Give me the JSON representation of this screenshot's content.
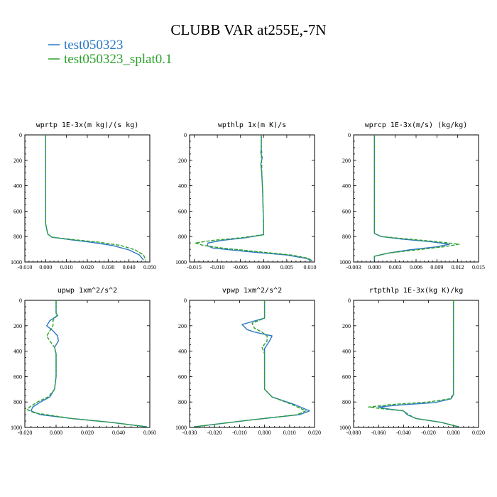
{
  "title": "CLUBB VAR at255E,-7N",
  "legend": [
    {
      "label": "test050323",
      "color": "#2a78c4",
      "dash": "solid"
    },
    {
      "label": "test050323_splat0.1",
      "color": "#2ca02c",
      "dash": "dashed"
    }
  ],
  "chart_data": [
    {
      "type": "line",
      "title": "wprtp  1E-3x(m kg)/(s kg)",
      "xlim": [
        -0.01,
        0.05
      ],
      "xticks": [
        "-0.010",
        "0.000",
        "0.010",
        "0.020",
        "0.030",
        "0.040",
        "0.050"
      ],
      "ylim": [
        1000,
        0
      ],
      "yticks": [
        "0",
        "200",
        "400",
        "600",
        "800",
        "1000"
      ],
      "series": [
        {
          "name": "test050323",
          "points": [
            [
              0.0,
              0
            ],
            [
              0.0,
              100
            ],
            [
              0.0,
              300
            ],
            [
              0.0,
              500
            ],
            [
              0.0,
              700
            ],
            [
              0.001,
              780
            ],
            [
              0.003,
              805
            ],
            [
              0.012,
              825
            ],
            [
              0.022,
              845
            ],
            [
              0.032,
              870
            ],
            [
              0.04,
              905
            ],
            [
              0.045,
              945
            ],
            [
              0.047,
              985
            ]
          ]
        },
        {
          "name": "test050323_splat0.1",
          "points": [
            [
              0.0,
              0
            ],
            [
              0.0,
              100
            ],
            [
              0.0,
              300
            ],
            [
              0.0,
              500
            ],
            [
              0.0,
              700
            ],
            [
              0.001,
              780
            ],
            [
              0.003,
              805
            ],
            [
              0.014,
              825
            ],
            [
              0.026,
              845
            ],
            [
              0.036,
              870
            ],
            [
              0.043,
              905
            ],
            [
              0.047,
              945
            ],
            [
              0.048,
              985
            ]
          ]
        }
      ]
    },
    {
      "type": "line",
      "title": "wpthlp  1x(m K)/s",
      "xlim": [
        -0.016,
        0.011
      ],
      "xticks": [
        "-0.015",
        "-0.010",
        "-0.005",
        "0.000",
        "0.005",
        "0.010"
      ],
      "ylim": [
        1000,
        0
      ],
      "yticks": [
        "0",
        "200",
        "400",
        "600",
        "800",
        "1000"
      ],
      "series": [
        {
          "name": "test050323",
          "points": [
            [
              -0.0005,
              0
            ],
            [
              -0.0005,
              100
            ],
            [
              -0.0006,
              140
            ],
            [
              -0.0003,
              180
            ],
            [
              -0.0006,
              230
            ],
            [
              -0.0004,
              300
            ],
            [
              -0.0002,
              450
            ],
            [
              -0.0001,
              600
            ],
            [
              0.0,
              750
            ],
            [
              0.0,
              785
            ],
            [
              -0.004,
              810
            ],
            [
              -0.009,
              830
            ],
            [
              -0.012,
              850
            ],
            [
              -0.0122,
              870
            ],
            [
              -0.011,
              890
            ],
            [
              -0.003,
              920
            ],
            [
              0.005,
              945
            ],
            [
              0.009,
              970
            ],
            [
              0.0105,
              990
            ]
          ]
        },
        {
          "name": "test050323_splat0.1",
          "points": [
            [
              -0.0005,
              0
            ],
            [
              -0.0005,
              100
            ],
            [
              -0.0004,
              140
            ],
            [
              -0.0005,
              180
            ],
            [
              -0.0004,
              230
            ],
            [
              -0.0004,
              300
            ],
            [
              -0.0002,
              450
            ],
            [
              -0.0001,
              600
            ],
            [
              0.0,
              750
            ],
            [
              0.0,
              785
            ],
            [
              -0.005,
              810
            ],
            [
              -0.011,
              830
            ],
            [
              -0.0148,
              850
            ],
            [
              -0.013,
              870
            ],
            [
              -0.009,
              890
            ],
            [
              -0.001,
              920
            ],
            [
              0.006,
              945
            ],
            [
              0.0095,
              970
            ],
            [
              0.0105,
              990
            ]
          ]
        }
      ]
    },
    {
      "type": "line",
      "title": "wprcp  1E-3x(m/s) (kg/kg)",
      "xlim": [
        -0.003,
        0.015
      ],
      "xticks": [
        "-0.003",
        "0.000",
        "0.003",
        "0.006",
        "0.009",
        "0.012",
        "0.015"
      ],
      "ylim": [
        1000,
        0
      ],
      "yticks": [
        "0",
        "200",
        "400",
        "600",
        "800",
        "1000"
      ],
      "series": [
        {
          "name": "test050323",
          "points": [
            [
              0.0,
              0
            ],
            [
              0.0,
              100
            ],
            [
              0.0,
              300
            ],
            [
              0.0,
              500
            ],
            [
              0.0,
              700
            ],
            [
              0.0,
              775
            ],
            [
              0.001,
              800
            ],
            [
              0.004,
              820
            ],
            [
              0.008,
              840
            ],
            [
              0.0108,
              860
            ],
            [
              0.009,
              880
            ],
            [
              0.005,
              905
            ],
            [
              0.002,
              930
            ],
            [
              0.0,
              955
            ],
            [
              0.0,
              985
            ]
          ]
        },
        {
          "name": "test050323_splat0.1",
          "points": [
            [
              0.0,
              0
            ],
            [
              0.0,
              100
            ],
            [
              0.0,
              300
            ],
            [
              0.0,
              500
            ],
            [
              0.0,
              700
            ],
            [
              0.0,
              775
            ],
            [
              0.001,
              800
            ],
            [
              0.005,
              820
            ],
            [
              0.009,
              840
            ],
            [
              0.0122,
              860
            ],
            [
              0.01,
              880
            ],
            [
              0.006,
              905
            ],
            [
              0.002,
              930
            ],
            [
              0.0,
              955
            ],
            [
              0.0,
              985
            ]
          ]
        }
      ]
    },
    {
      "type": "line",
      "title": "upwp  1xm^2/s^2",
      "xlim": [
        -0.02,
        0.06
      ],
      "xticks": [
        "-0.020",
        "0.000",
        "0.020",
        "0.040",
        "0.060"
      ],
      "ylim": [
        1000,
        0
      ],
      "yticks": [
        "0",
        "200",
        "400",
        "600",
        "800",
        "1000"
      ],
      "series": [
        {
          "name": "test050323",
          "points": [
            [
              0.0,
              0
            ],
            [
              0.0,
              100
            ],
            [
              0.001,
              120
            ],
            [
              -0.004,
              160
            ],
            [
              -0.006,
              200
            ],
            [
              -0.002,
              240
            ],
            [
              0.001,
              280
            ],
            [
              0.0015,
              320
            ],
            [
              -0.001,
              370
            ],
            [
              0.0,
              420
            ],
            [
              0.0,
              500
            ],
            [
              0.0,
              600
            ],
            [
              -0.001,
              700
            ],
            [
              -0.004,
              760
            ],
            [
              -0.01,
              800
            ],
            [
              -0.015,
              840
            ],
            [
              -0.016,
              870
            ],
            [
              -0.01,
              900
            ],
            [
              0.01,
              930
            ],
            [
              0.035,
              960
            ],
            [
              0.058,
              995
            ]
          ]
        },
        {
          "name": "test050323_splat0.1",
          "points": [
            [
              0.0,
              0
            ],
            [
              0.0,
              100
            ],
            [
              0.0005,
              120
            ],
            [
              -0.002,
              160
            ],
            [
              -0.002,
              200
            ],
            [
              -0.004,
              240
            ],
            [
              -0.006,
              280
            ],
            [
              -0.004,
              320
            ],
            [
              -0.001,
              370
            ],
            [
              0.0,
              420
            ],
            [
              0.0,
              500
            ],
            [
              0.0,
              600
            ],
            [
              -0.001,
              700
            ],
            [
              -0.005,
              760
            ],
            [
              -0.012,
              800
            ],
            [
              -0.017,
              840
            ],
            [
              -0.0185,
              860
            ],
            [
              -0.014,
              885
            ],
            [
              0.01,
              930
            ],
            [
              0.035,
              960
            ],
            [
              0.058,
              995
            ]
          ]
        }
      ]
    },
    {
      "type": "line",
      "title": "vpwp  1xm^2/s^2",
      "xlim": [
        -0.03,
        0.02
      ],
      "xticks": [
        "-0.030",
        "-0.020",
        "-0.010",
        "0.000",
        "0.010",
        "0.020"
      ],
      "ylim": [
        1000,
        0
      ],
      "yticks": [
        "0",
        "200",
        "400",
        "600",
        "800",
        "1000"
      ],
      "series": [
        {
          "name": "test050323",
          "points": [
            [
              0.0,
              0
            ],
            [
              0.0,
              100
            ],
            [
              0.0,
              140
            ],
            [
              -0.009,
              190
            ],
            [
              -0.007,
              230
            ],
            [
              -0.004,
              250
            ],
            [
              0.003,
              280
            ],
            [
              0.002,
              320
            ],
            [
              0.0,
              380
            ],
            [
              0.0,
              450
            ],
            [
              0.0,
              520
            ],
            [
              0.0,
              600
            ],
            [
              0.0,
              700
            ],
            [
              0.003,
              760
            ],
            [
              0.012,
              820
            ],
            [
              0.018,
              870
            ],
            [
              0.014,
              900
            ],
            [
              -0.005,
              940
            ],
            [
              -0.028,
              995
            ]
          ]
        },
        {
          "name": "test050323_splat0.1",
          "points": [
            [
              0.0,
              0
            ],
            [
              0.0,
              100
            ],
            [
              0.0,
              140
            ],
            [
              -0.005,
              180
            ],
            [
              -0.004,
              220
            ],
            [
              -0.001,
              250
            ],
            [
              0.001,
              280
            ],
            [
              0.001,
              320
            ],
            [
              -0.001,
              370
            ],
            [
              0.0,
              420
            ],
            [
              0.0,
              520
            ],
            [
              0.0,
              600
            ],
            [
              0.0,
              700
            ],
            [
              0.003,
              760
            ],
            [
              0.011,
              820
            ],
            [
              0.0165,
              870
            ],
            [
              0.013,
              900
            ],
            [
              -0.005,
              940
            ],
            [
              -0.028,
              995
            ]
          ]
        }
      ]
    },
    {
      "type": "line",
      "title": "rtpthlp  1E-3x(kg K)/kg",
      "xlim": [
        -0.08,
        0.02
      ],
      "xticks": [
        "-0.080",
        "-0.060",
        "-0.040",
        "-0.020",
        "0.000",
        "0.020"
      ],
      "ylim": [
        1000,
        0
      ],
      "yticks": [
        "0",
        "200",
        "400",
        "600",
        "800",
        "1000"
      ],
      "series": [
        {
          "name": "test050323",
          "points": [
            [
              0.0,
              0
            ],
            [
              0.0,
              200
            ],
            [
              0.0,
              400
            ],
            [
              0.0,
              600
            ],
            [
              0.0,
              740
            ],
            [
              -0.002,
              775
            ],
            [
              -0.015,
              805
            ],
            [
              -0.045,
              825
            ],
            [
              -0.06,
              840
            ],
            [
              -0.052,
              855
            ],
            [
              -0.04,
              870
            ],
            [
              -0.037,
              900
            ],
            [
              -0.03,
              930
            ],
            [
              -0.01,
              960
            ],
            [
              0.004,
              995
            ]
          ]
        },
        {
          "name": "test050323_splat0.1",
          "points": [
            [
              0.0,
              0
            ],
            [
              0.0,
              200
            ],
            [
              0.0,
              400
            ],
            [
              0.0,
              600
            ],
            [
              0.0,
              740
            ],
            [
              -0.003,
              775
            ],
            [
              -0.02,
              800
            ],
            [
              -0.05,
              820
            ],
            [
              -0.068,
              840
            ],
            [
              -0.055,
              855
            ],
            [
              -0.04,
              870
            ],
            [
              -0.036,
              900
            ],
            [
              -0.03,
              930
            ],
            [
              -0.01,
              960
            ],
            [
              0.004,
              995
            ]
          ]
        }
      ]
    }
  ]
}
